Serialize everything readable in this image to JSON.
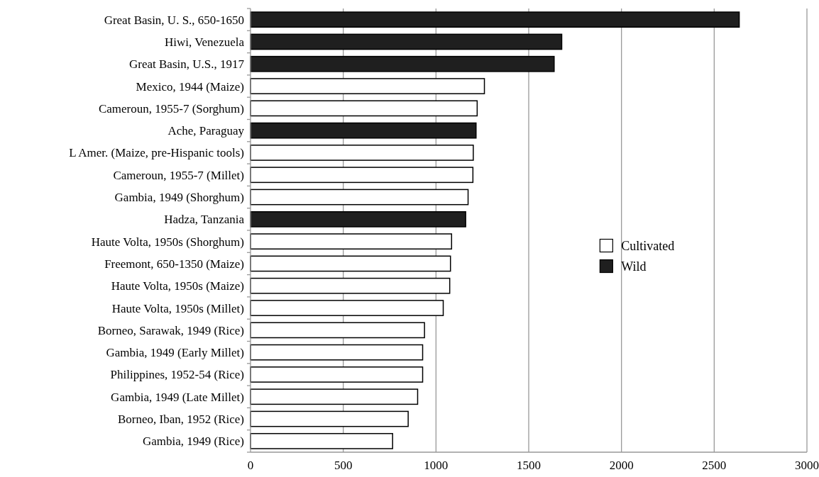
{
  "chart_data": {
    "type": "bar",
    "orientation": "horizontal",
    "stacked": true,
    "categories": [
      "Great Basin, U. S., 650-1650",
      "Hiwi, Venezuela",
      "Great Basin, U.S., 1917",
      "Mexico, 1944 (Maize)",
      "Cameroun, 1955-7 (Sorghum)",
      "Ache, Paraguay",
      "L Amer. (Maize, pre-Hispanic tools)",
      "Cameroun, 1955-7 (Millet)",
      "Gambia, 1949 (Shorghum)",
      "Hadza, Tanzania",
      "Haute Volta, 1950s (Shorghum)",
      "Freemont, 650-1350 (Maize)",
      "Haute Volta, 1950s (Maize)",
      "Haute Volta, 1950s (Millet)",
      "Borneo, Sarawak, 1949 (Rice)",
      "Gambia, 1949 (Early Millet)",
      "Philippines, 1952-54 (Rice)",
      "Gambia, 1949 (Late Millet)",
      "Borneo, Iban, 1952 (Rice)",
      "Gambia, 1949 (Rice)"
    ],
    "series": [
      {
        "name": "Cultivated",
        "color": "#ffffff",
        "values": [
          null,
          null,
          null,
          1261,
          1222,
          null,
          1201,
          1199,
          1173,
          null,
          1084,
          1078,
          1074,
          1039,
          938,
          928,
          928,
          901,
          850,
          766
        ]
      },
      {
        "name": "Wild",
        "color": "#1f1f1f",
        "values": [
          2635,
          1678,
          1637,
          null,
          null,
          1216,
          null,
          null,
          null,
          1160,
          null,
          null,
          null,
          null,
          null,
          null,
          null,
          null,
          null,
          null
        ]
      }
    ],
    "xlim": [
      0,
      3000
    ],
    "xticks": [
      0,
      500,
      1000,
      1500,
      2000,
      2500,
      3000
    ],
    "grid": "x",
    "legend": "right"
  }
}
